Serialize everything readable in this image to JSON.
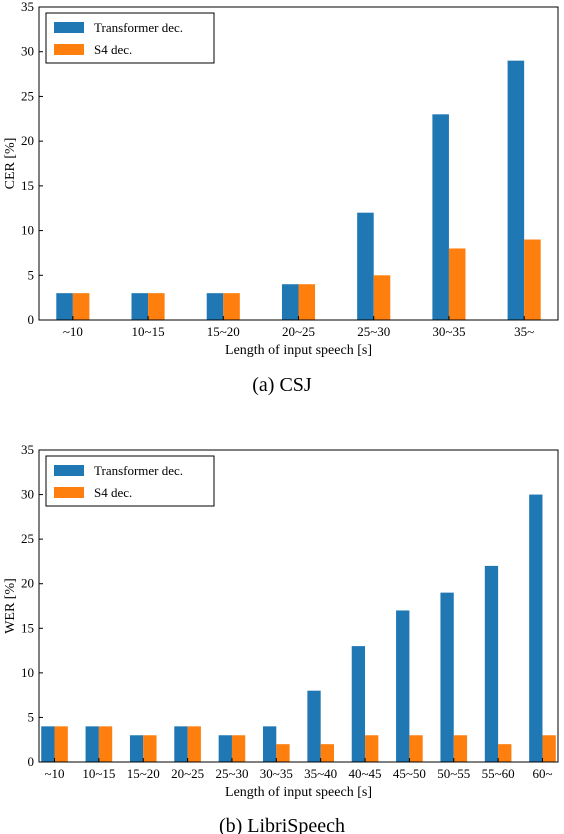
{
  "colors": {
    "transformer": "#1f77b4",
    "s4": "#ff7f0e"
  },
  "chart_data": [
    {
      "type": "bar",
      "caption": "(a) CSJ",
      "xlabel": "Length of input speech [s]",
      "ylabel": "CER [%]",
      "ylim": [
        0,
        35
      ],
      "yticks": [
        0,
        5,
        10,
        15,
        20,
        25,
        30,
        35
      ],
      "grid": false,
      "legend_position": "top-left",
      "categories": [
        "~10",
        "10~15",
        "15~20",
        "20~25",
        "25~30",
        "30~35",
        "35~"
      ],
      "series": [
        {
          "name": "Transformer dec.",
          "values": [
            3,
            3,
            3,
            4,
            12,
            23,
            29
          ]
        },
        {
          "name": "S4 dec.",
          "values": [
            3,
            3,
            3,
            4,
            5,
            8,
            9
          ]
        }
      ]
    },
    {
      "type": "bar",
      "caption": "(b) LibriSpeech",
      "xlabel": "Length of input speech [s]",
      "ylabel": "WER [%]",
      "ylim": [
        0,
        35
      ],
      "yticks": [
        0,
        5,
        10,
        15,
        20,
        25,
        30,
        35
      ],
      "grid": false,
      "legend_position": "top-left",
      "categories": [
        "~10",
        "10~15",
        "15~20",
        "20~25",
        "25~30",
        "30~35",
        "35~40",
        "40~45",
        "45~50",
        "50~55",
        "55~60",
        "60~"
      ],
      "series": [
        {
          "name": "Transformer dec.",
          "values": [
            4,
            4,
            3,
            4,
            3,
            4,
            8,
            13,
            17,
            19,
            22,
            30
          ]
        },
        {
          "name": "S4 dec.",
          "values": [
            4,
            4,
            3,
            4,
            3,
            2,
            2,
            3,
            3,
            3,
            2,
            3
          ]
        }
      ]
    }
  ]
}
